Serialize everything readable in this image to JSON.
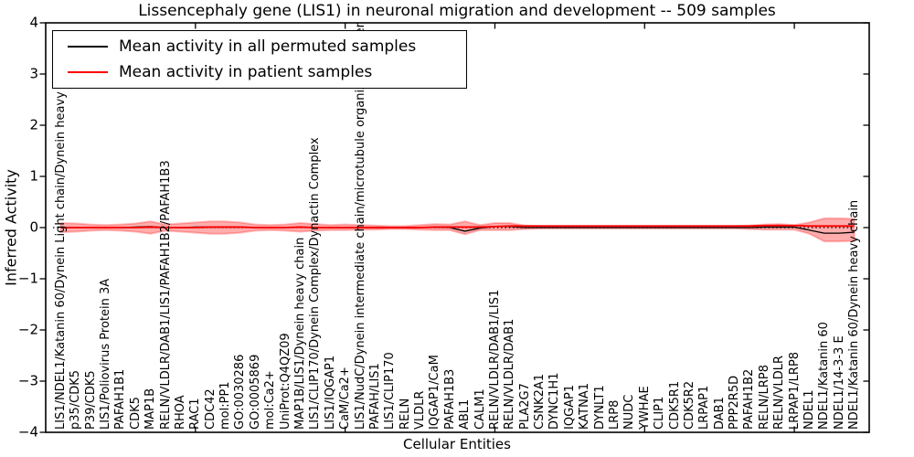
{
  "chart_data": {
    "type": "line",
    "title": "Lissencephaly gene (LIS1) in neuronal migration and development -- 509 samples",
    "xlabel": "Cellular Entities",
    "ylabel": "Inferred Activity",
    "ylim": [
      -4,
      4
    ],
    "ytick_labels": [
      "4",
      "3",
      "2",
      "1",
      "0",
      "−1",
      "−2",
      "−3",
      "−4"
    ],
    "ytick_values": [
      4,
      3,
      2,
      1,
      0,
      -1,
      -2,
      -3,
      -4
    ],
    "xtick_mark_positions": [
      10,
      20,
      30,
      40,
      50
    ],
    "grid": false,
    "legend_position": "upper left",
    "zero_line": {
      "y": 0,
      "style": "dotted",
      "color": "#000000"
    },
    "categories": [
      "LIS1/NDEL1/Katanin 60/Dynein Light chain/Dynein heavy chain",
      "p35/CDK5",
      "P39/CDK5",
      "LIS1/Poliovirus Protein 3A",
      "PAFAH1B1",
      "CDK5",
      "MAP1B",
      "RELN/VLDLR/DAB1/LIS1/PAFAH1B2/PAFAH1B3",
      "RHOA",
      "RAC1",
      "CDC42",
      "mol:PP1",
      "GO:0030286",
      "GO:0005869",
      "mol:Ca2+",
      "UniProt:Q4QZ09",
      "MAP1B/LIS1/Dynein heavy chain",
      "LIS1/CLIP170/Dynein Complex/Dynactin Complex",
      "LIS1/IQGAP1",
      "CaM/Ca2+",
      "LIS1/NudC/Dynein intermediate chain/microtubule organizing center",
      "PAFAH/LIS1",
      "LIS1/CLIP170",
      "RELN",
      "VLDLR",
      "IQGAP1/CaM",
      "PAFAH1B3",
      "ABL1",
      "CALM1",
      "RELN/VLDLR/DAB1/LIS1",
      "RELN/VLDLR/DAB1",
      "PLA2G7",
      "CSNK2A1",
      "DYNC1H1",
      "IQGAP1",
      "KATNA1",
      "DYNLT1",
      "LRP8",
      "NUDC",
      "YWHAE",
      "CLIP1",
      "CDK5R1",
      "CDK5R2",
      "LRPAP1",
      "DAB1",
      "PPP2R5D",
      "PAFAH1B2",
      "RELN/LRP8",
      "RELN/VLDLR",
      "LRPAP1/LRP8",
      "NDEL1",
      "NDEL1/Katanin 60",
      "NDEL1/14-3-3 E",
      "NDEL1/Katanin 60/Dynein heavy chain"
    ],
    "series": [
      {
        "name": "Mean activity in all permuted samples",
        "color": "#000000",
        "values": [
          0,
          0,
          0,
          0,
          0,
          0.01,
          0.02,
          0,
          0,
          0.01,
          0.01,
          0.01,
          0.01,
          0,
          0,
          0,
          0.01,
          0,
          0,
          0,
          0,
          0,
          0,
          0,
          0,
          0.01,
          0,
          -0.07,
          -0.01,
          0.02,
          0.02,
          0,
          0,
          0,
          0,
          0,
          0,
          0,
          0,
          0,
          0,
          0,
          0,
          0,
          0,
          0,
          0,
          0.01,
          0.01,
          0.01,
          -0.05,
          -0.11,
          -0.11,
          -0.09
        ]
      },
      {
        "name": "Mean activity in patient samples",
        "color": "#ff0000",
        "values": [
          0,
          0,
          0,
          0,
          0,
          0,
          0.01,
          0,
          0,
          0,
          0.01,
          0.01,
          0.01,
          0,
          0,
          0,
          0.01,
          0,
          0,
          0,
          0,
          0,
          0,
          0,
          0,
          0.01,
          0.01,
          0.01,
          0.01,
          0.02,
          0.03,
          0.03,
          0.03,
          0.03,
          0.03,
          0.03,
          0.03,
          0.03,
          0.03,
          0.03,
          0.03,
          0.03,
          0.03,
          0.03,
          0.03,
          0.03,
          0.03,
          0.04,
          0.04,
          0.04,
          0.03,
          0.03,
          0.03,
          0.03
        ]
      }
    ],
    "band": {
      "name": "patient sample activity spread",
      "color": "#ff0000",
      "opacity": 0.32,
      "upper": [
        0.09,
        0.08,
        0.06,
        0.05,
        0.06,
        0.08,
        0.12,
        0.06,
        0.08,
        0.1,
        0.12,
        0.12,
        0.1,
        0.06,
        0.05,
        0.06,
        0.09,
        0.07,
        0.05,
        0.06,
        0.05,
        0.04,
        0.03,
        0.03,
        0.05,
        0.07,
        0.06,
        0.12,
        0.05,
        0.09,
        0.09,
        0.04,
        0.03,
        0.03,
        0.03,
        0.03,
        0.03,
        0.03,
        0.03,
        0.03,
        0.03,
        0.03,
        0.03,
        0.03,
        0.03,
        0.03,
        0.04,
        0.06,
        0.07,
        0.05,
        0.1,
        0.18,
        0.18,
        0.17
      ],
      "lower": [
        -0.09,
        -0.08,
        -0.06,
        -0.05,
        -0.06,
        -0.08,
        -0.12,
        -0.06,
        -0.08,
        -0.1,
        -0.12,
        -0.12,
        -0.1,
        -0.06,
        -0.05,
        -0.06,
        -0.08,
        -0.06,
        -0.05,
        -0.05,
        -0.04,
        -0.04,
        -0.03,
        -0.03,
        -0.04,
        -0.05,
        -0.05,
        -0.13,
        -0.05,
        -0.05,
        -0.05,
        -0.03,
        -0.02,
        -0.02,
        -0.02,
        -0.02,
        -0.02,
        -0.02,
        -0.02,
        -0.02,
        -0.02,
        -0.02,
        -0.02,
        -0.02,
        -0.02,
        -0.02,
        -0.03,
        -0.04,
        -0.04,
        -0.04,
        -0.12,
        -0.27,
        -0.27,
        -0.26
      ]
    }
  }
}
